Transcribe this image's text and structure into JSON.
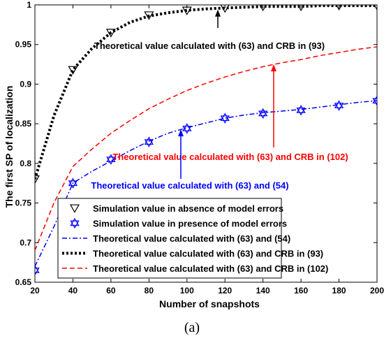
{
  "chart_data": {
    "type": "line",
    "xlabel": "Number of snapshots",
    "ylabel": "The first SP of localization",
    "xlim": [
      20,
      200
    ],
    "ylim": [
      0.65,
      1.0
    ],
    "x_ticks": [
      20,
      40,
      60,
      80,
      100,
      120,
      140,
      160,
      180,
      200
    ],
    "y_ticks": [
      0.65,
      0.7,
      0.75,
      0.8,
      0.85,
      0.9,
      0.95,
      1
    ],
    "y_tick_labels": [
      "0.65",
      "0.7",
      "0.75",
      "0.8",
      "0.85",
      "0.9",
      "0.95",
      "1"
    ],
    "grid": false,
    "legend_position": "bottom",
    "series": [
      {
        "name": "Simulation value in absence of model errors",
        "style": "markers",
        "marker": "triangle-down",
        "color": "#000000",
        "x": [
          20,
          40,
          60,
          80,
          100,
          120,
          140,
          160,
          180,
          200
        ],
        "y": [
          0.78,
          0.918,
          0.965,
          0.987,
          0.993,
          0.996,
          0.998,
          0.998,
          0.999,
          0.999
        ]
      },
      {
        "name": "Simulation value in presence of model errors",
        "style": "markers",
        "marker": "hexagram",
        "color": "#0000ff",
        "x": [
          20,
          40,
          60,
          80,
          100,
          120,
          140,
          160,
          180,
          200
        ],
        "y": [
          0.665,
          0.775,
          0.805,
          0.827,
          0.844,
          0.857,
          0.863,
          0.867,
          0.873,
          0.879
        ]
      },
      {
        "name": "Theoretical value calculated with (63) and (54)",
        "style": "dashdot",
        "color": "#0000ff",
        "x": [
          20,
          30,
          40,
          50,
          60,
          70,
          80,
          90,
          100,
          110,
          120,
          130,
          140,
          150,
          160,
          170,
          180,
          190,
          200
        ],
        "y": [
          0.67,
          0.72,
          0.775,
          0.79,
          0.803,
          0.816,
          0.828,
          0.838,
          0.845,
          0.851,
          0.857,
          0.861,
          0.864,
          0.866,
          0.868,
          0.871,
          0.874,
          0.877,
          0.879
        ]
      },
      {
        "name": "Theoretical value calculated with (63) and CRB in (93)",
        "style": "dotted-thick",
        "color": "#000000",
        "x": [
          20,
          30,
          40,
          50,
          60,
          70,
          80,
          90,
          100,
          110,
          120,
          130,
          140,
          150,
          160,
          170,
          180,
          190,
          200
        ],
        "y": [
          0.78,
          0.86,
          0.918,
          0.945,
          0.965,
          0.978,
          0.986,
          0.99,
          0.993,
          0.995,
          0.996,
          0.997,
          0.998,
          0.998,
          0.998,
          0.999,
          0.999,
          0.999,
          0.999
        ]
      },
      {
        "name": "Theoretical value calculated with (63) and CRB in (102)",
        "style": "dashed",
        "color": "#ff0000",
        "x": [
          20,
          30,
          40,
          50,
          60,
          70,
          80,
          90,
          100,
          110,
          120,
          130,
          140,
          150,
          160,
          170,
          180,
          190,
          200
        ],
        "y": [
          0.69,
          0.75,
          0.796,
          0.818,
          0.838,
          0.854,
          0.869,
          0.881,
          0.892,
          0.901,
          0.909,
          0.916,
          0.922,
          0.927,
          0.931,
          0.936,
          0.94,
          0.944,
          0.947
        ]
      }
    ],
    "annotations": [
      {
        "text": "Theoretical value calculated with (63) and CRB in (93)",
        "color": "#000000",
        "arrow_to": [
          116,
          0.994
        ]
      },
      {
        "text": "Theoretical value calculated with (63) and CRB in (102)",
        "color": "#ff0000",
        "arrow_to": [
          147,
          0.925
        ]
      },
      {
        "text": "Theoretical value calculated with (63) and (54)",
        "color": "#0000ff",
        "arrow_to": [
          97,
          0.843
        ]
      }
    ]
  },
  "panel_label": "(a)"
}
